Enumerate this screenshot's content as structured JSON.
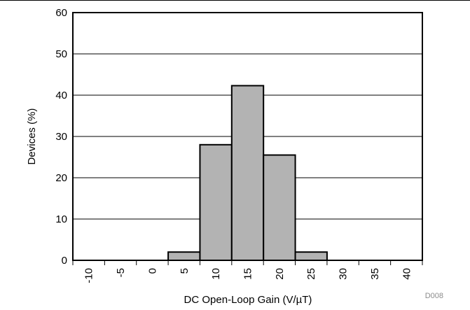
{
  "chart_data": {
    "type": "bar",
    "subtype": "histogram",
    "xlabel": "DC Open-Loop Gain (V/µT)",
    "ylabel": "Devices (%)",
    "figure_id": "D008",
    "xlim": [
      -12.5,
      42.5
    ],
    "ylim": [
      0,
      60
    ],
    "x_ticks": [
      -10,
      -5,
      0,
      5,
      10,
      15,
      20,
      25,
      30,
      35,
      40
    ],
    "x_tick_labels": [
      "-10",
      "-5",
      "0",
      "5",
      "10",
      "15",
      "20",
      "25",
      "30",
      "35",
      "40"
    ],
    "y_ticks": [
      0,
      10,
      20,
      30,
      40,
      50,
      60
    ],
    "y_tick_labels": [
      "0",
      "10",
      "20",
      "30",
      "40",
      "50",
      "60"
    ],
    "bin_width": 5,
    "categories": [
      "-10",
      "-5",
      "0",
      "5",
      "10",
      "15",
      "20",
      "25",
      "30",
      "35",
      "40"
    ],
    "values": [
      0,
      0,
      0,
      2,
      28,
      42.3,
      25.5,
      2,
      0,
      0,
      0
    ],
    "grid": "horizontal",
    "legend": "none",
    "colors": {
      "bar_fill": "#b3b3b3",
      "bar_edge": "#000000",
      "grid": "#000000"
    }
  }
}
